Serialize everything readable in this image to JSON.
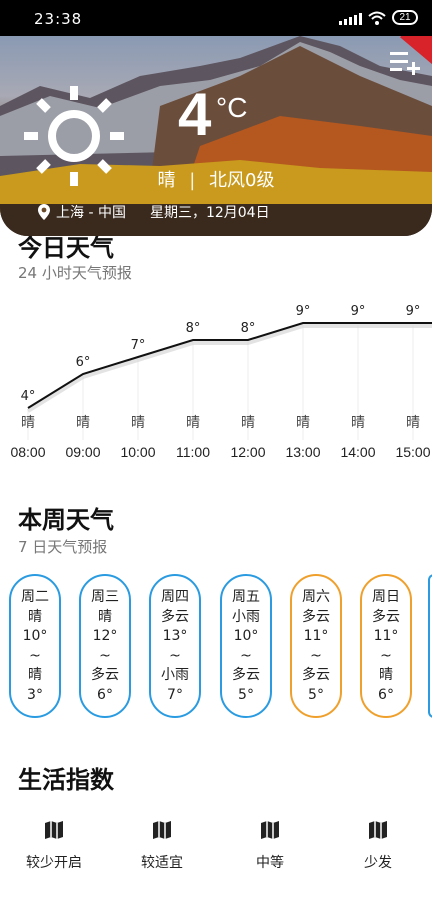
{
  "status_bar": {
    "time": "23:38",
    "battery": "21"
  },
  "header": {
    "temperature": "4",
    "unit": "°C",
    "condition": "晴",
    "separator": "|",
    "wind": "北风0级",
    "location": "上海 - 中国",
    "date": "星期三，12月04日",
    "icons": [
      "sun-icon",
      "location-pin-icon",
      "add-city-icon"
    ]
  },
  "today": {
    "title": "今日天气",
    "subtitle": "24 小时天气预报"
  },
  "chart_data": {
    "type": "line",
    "x": [
      "08:00",
      "09:00",
      "10:00",
      "11:00",
      "12:00",
      "13:00",
      "14:00",
      "15:00"
    ],
    "series": [
      {
        "values": [
          4,
          6,
          7,
          8,
          8,
          9,
          9,
          9
        ]
      }
    ],
    "value_labels": [
      "4°",
      "6°",
      "7°",
      "8°",
      "8°",
      "9°",
      "9°",
      "9°"
    ],
    "conditions": [
      "晴",
      "晴",
      "晴",
      "晴",
      "晴",
      "晴",
      "晴",
      "晴"
    ],
    "grid": true
  },
  "week": {
    "title": "本周天气",
    "subtitle": "7 日天气预报",
    "days": [
      {
        "day": "周二",
        "cond1": "晴",
        "high": "10°",
        "tilde": "~",
        "cond2": "晴",
        "low": "3°",
        "style": "cool"
      },
      {
        "day": "周三",
        "cond1": "晴",
        "high": "12°",
        "tilde": "~",
        "cond2": "多云",
        "low": "6°",
        "style": "cool"
      },
      {
        "day": "周四",
        "cond1": "多云",
        "high": "13°",
        "tilde": "~",
        "cond2": "小雨",
        "low": "7°",
        "style": "cool"
      },
      {
        "day": "周五",
        "cond1": "小雨",
        "high": "10°",
        "tilde": "~",
        "cond2": "多云",
        "low": "5°",
        "style": "cool"
      },
      {
        "day": "周六",
        "cond1": "多云",
        "high": "11°",
        "tilde": "~",
        "cond2": "多云",
        "low": "5°",
        "style": "warm"
      },
      {
        "day": "周日",
        "cond1": "多云",
        "high": "11°",
        "tilde": "~",
        "cond2": "晴",
        "low": "6°",
        "style": "warm"
      }
    ],
    "colors": {
      "cool": "#2a9be0",
      "warm": "#efa02c"
    }
  },
  "life": {
    "title": "生活指数",
    "items": [
      {
        "label": "较少开启",
        "icon": "map-icon"
      },
      {
        "label": "较适宜",
        "icon": "map-icon"
      },
      {
        "label": "中等",
        "icon": "map-icon"
      },
      {
        "label": "少发",
        "icon": "map-icon"
      }
    ]
  }
}
